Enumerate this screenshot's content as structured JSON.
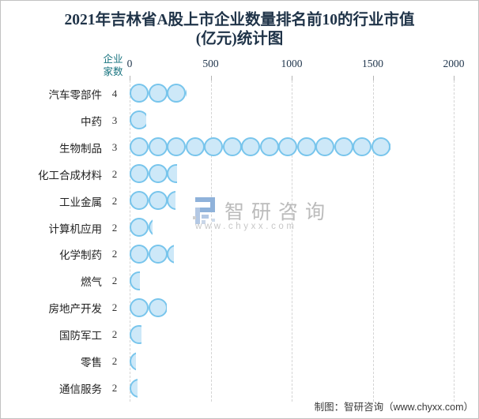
{
  "title": {
    "line1": "2021年吉林省A股上市企业数量排名前10的行业市值",
    "line2": "(亿元)统计图",
    "full": "2021年吉林省A股上市企业数量排名前10的行业市值(亿元)统计图"
  },
  "chart_data": {
    "type": "bar",
    "orientation": "horizontal",
    "bar_style": "bubble-chain",
    "title": "2021年吉林省A股上市企业数量排名前10的行业市值(亿元)统计图",
    "value_unit": "亿元",
    "count_column_header": "企业家数",
    "x_ticks": [
      0,
      500,
      1000,
      1500,
      2000
    ],
    "xlim": [
      0,
      2100
    ],
    "grid": "dashed-vertical",
    "categories": [
      "汽车零部件",
      "中药",
      "生物制品",
      "化工合成材料",
      "工业金属",
      "计算机应用",
      "化学制药",
      "燃气",
      "房地产开发",
      "国防军工",
      "零售",
      "通信服务"
    ],
    "company_counts": [
      4,
      3,
      3,
      2,
      2,
      2,
      2,
      2,
      2,
      2,
      2,
      2
    ],
    "values": [
      350,
      100,
      1610,
      295,
      285,
      140,
      275,
      65,
      230,
      75,
      40,
      50
    ]
  },
  "watermark": {
    "brand": "智研咨询",
    "url": "www.chyxx.com",
    "logo": "zhiyan-logo"
  },
  "footer": {
    "credit": "制图：智研咨询（www.chyxx.com）"
  },
  "colors": {
    "title_text": "#1f3348",
    "axis_text": "#22374e",
    "count_header_teal": "#17737f",
    "category_text": "#222222",
    "bubble_fill": "#cde8f8",
    "bubble_stroke": "#78c5ec",
    "gridline": "#d4d4d4",
    "watermark_grey": "#bbbbbb",
    "watermark_logo_blue": "#8fb2da",
    "watermark_logo_light": "#b3c8e4",
    "footer_text": "#3a3a3a",
    "border": "#c2c2c2"
  }
}
